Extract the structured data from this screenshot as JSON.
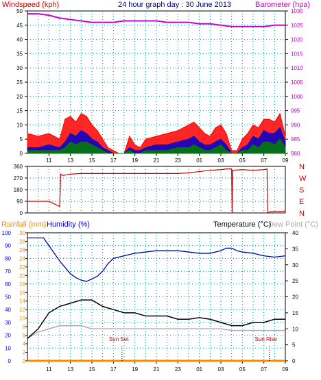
{
  "page": {
    "title": "24 hour graph day : 30 June 2013",
    "colors": {
      "windspeed": "#ff0000",
      "gust_blue": "#0000cc",
      "avg_green": "#008000",
      "barometer": "#cc00cc",
      "direction": "#cc0000",
      "rainfall": "#ff8c00",
      "humidity": "#0000ff",
      "humidity_line": "#0000aa",
      "temperature": "#000000",
      "dew_point": "#aaaaaa"
    }
  },
  "chart_data": [
    {
      "type": "area",
      "name_left_axis": "Windspeed (kph)",
      "name_right_axis": "Barometer (hpa)",
      "x_ticks": [
        "11",
        "13",
        "15",
        "17",
        "19",
        "21",
        "23",
        "01",
        "03",
        "05",
        "07",
        "09"
      ],
      "yleft_ticks": [
        "0",
        "5",
        "10",
        "15",
        "20",
        "25",
        "30",
        "35",
        "40",
        "45",
        "50"
      ],
      "yleft_lim": [
        0,
        50
      ],
      "yright_ticks": [
        "980",
        "985",
        "990",
        "995",
        "1000",
        "1005",
        "1010",
        "1015",
        "1020",
        "1025",
        "1030"
      ],
      "yright_lim": [
        980,
        1030
      ],
      "x_hours_from": 9,
      "grid": true,
      "series": [
        {
          "kind": "area",
          "style": "windspeed",
          "x": [
            9,
            10,
            11,
            12,
            12.5,
            13,
            13.5,
            14,
            14.5,
            15,
            15.5,
            16,
            16.5,
            17,
            17.5,
            18,
            18.5,
            19,
            19.5,
            20,
            21,
            22,
            23,
            24,
            24.5,
            25,
            25.5,
            26,
            26.5,
            27,
            27.5,
            28,
            28.5,
            29,
            29.5,
            30,
            30.5,
            31,
            31.5,
            32,
            32.5,
            33
          ],
          "values": [
            7,
            6,
            7,
            5,
            12,
            13,
            11,
            14,
            13,
            10,
            8,
            5,
            2,
            1,
            0,
            0,
            6,
            3,
            2,
            5,
            6,
            7,
            8,
            10,
            11,
            9,
            7,
            6,
            9,
            10,
            7,
            1,
            1,
            5,
            7,
            10,
            9,
            12,
            12,
            11,
            14,
            6
          ]
        },
        {
          "kind": "area",
          "style": "gust_blue",
          "x": [
            9,
            10,
            11,
            12,
            12.5,
            13,
            13.5,
            14,
            14.5,
            15,
            15.5,
            16,
            16.5,
            17,
            17.5,
            18,
            18.5,
            19,
            19.5,
            20,
            21,
            22,
            23,
            24,
            24.5,
            25,
            25.5,
            26,
            26.5,
            27,
            27.5,
            28,
            28.5,
            29,
            29.5,
            30,
            30.5,
            31,
            31.5,
            32,
            32.5,
            33
          ],
          "values": [
            2,
            2,
            3,
            2,
            4,
            7,
            6,
            8,
            7,
            5,
            4,
            2,
            1,
            0,
            0,
            0,
            2,
            1,
            1,
            2,
            3,
            3,
            4,
            5,
            6,
            4,
            3,
            3,
            4,
            5,
            3,
            0,
            0,
            2,
            3,
            6,
            5,
            8,
            7,
            7,
            9,
            4
          ]
        },
        {
          "kind": "area",
          "style": "avg_green",
          "x": [
            9,
            10,
            11,
            12,
            12.5,
            13,
            13.5,
            14,
            14.5,
            15,
            15.5,
            16,
            16.5,
            17,
            17.5,
            18,
            18.5,
            19,
            19.5,
            20,
            21,
            22,
            23,
            24,
            24.5,
            25,
            25.5,
            26,
            26.5,
            27,
            27.5,
            28,
            28.5,
            29,
            29.5,
            30,
            30.5,
            31,
            31.5,
            32,
            32.5,
            33
          ],
          "values": [
            1,
            1,
            1,
            1,
            2,
            4,
            3,
            4,
            4,
            3,
            2,
            1,
            0,
            0,
            0,
            0,
            1,
            0,
            0,
            1,
            1,
            1,
            2,
            2,
            3,
            2,
            1,
            1,
            2,
            3,
            1,
            0,
            0,
            1,
            1,
            3,
            2,
            4,
            4,
            3,
            5,
            2
          ]
        },
        {
          "kind": "line",
          "axis": "right",
          "style": "barometer",
          "x": [
            9,
            10,
            11,
            12,
            13,
            14,
            15,
            16,
            17,
            18,
            19,
            20,
            21,
            22,
            23,
            24,
            25,
            26,
            27,
            28,
            29,
            30,
            31,
            32,
            33
          ],
          "values": [
            1029,
            1029,
            1028.5,
            1027.5,
            1027,
            1026.5,
            1026,
            1026,
            1026,
            1026.5,
            1026.5,
            1026.5,
            1026.5,
            1026,
            1026,
            1026,
            1025.5,
            1025.5,
            1025,
            1024.5,
            1024.5,
            1024.5,
            1024.5,
            1025,
            1025
          ]
        }
      ]
    },
    {
      "type": "line",
      "x_ticks": [
        "0",
        "90",
        "180",
        "270",
        "360"
      ],
      "yleft_ticks": [
        "0",
        "90",
        "180",
        "270",
        "360"
      ],
      "yleft_lim": [
        0,
        360
      ],
      "right_labels": [
        "N",
        "W",
        "S",
        "E",
        "N"
      ],
      "grid": true,
      "series": [
        {
          "style": "direction",
          "x": [
            9,
            10,
            11,
            12,
            12.1,
            12.3,
            13,
            14,
            15,
            16,
            17,
            18,
            19,
            20,
            21,
            22,
            23,
            24,
            25,
            26,
            27,
            27.5,
            28,
            28.05,
            28.1,
            29,
            30,
            31,
            31.3,
            31.35,
            31.6,
            32,
            33
          ],
          "values": [
            90,
            90,
            90,
            50,
            300,
            290,
            300,
            305,
            305,
            305,
            305,
            305,
            305,
            305,
            305,
            305,
            305,
            310,
            320,
            330,
            335,
            340,
            340,
            0,
            330,
            335,
            330,
            335,
            340,
            0,
            10,
            10,
            15
          ]
        }
      ]
    },
    {
      "type": "line",
      "labels": {
        "rainfall": "Rainfall (mm)",
        "humidity": "Humidity (%)",
        "temperature": "Temperature (°C)",
        "dew_point": "Dew Point (°C)"
      },
      "y_humidity_ticks": [
        "0",
        "10",
        "20",
        "30",
        "40",
        "50",
        "60",
        "70",
        "80",
        "90",
        "100"
      ],
      "y_humidity_lim": [
        0,
        100
      ],
      "y_rain_ticks": [
        "0",
        "2",
        "4",
        "6",
        "8",
        "10",
        "12",
        "14",
        "16",
        "18",
        "20",
        "22",
        "24",
        "26",
        "28",
        "30"
      ],
      "y_rain_lim": [
        0,
        30
      ],
      "y_temp_ticks": [
        "0",
        "5",
        "10",
        "15",
        "20",
        "25",
        "30",
        "35",
        "40"
      ],
      "y_temp_lim": [
        0,
        40
      ],
      "x_ticks": [
        "11",
        "13",
        "15",
        "17",
        "19",
        "21",
        "23",
        "01",
        "03",
        "05",
        "07",
        "09"
      ],
      "annotations": [
        {
          "text": "Sun Set",
          "x": 17.5
        },
        {
          "text": "Sun Rise",
          "x": 31.2
        }
      ],
      "grid": true,
      "series": [
        {
          "name": "Humidity",
          "style": "humidity_line",
          "axis": "humidity",
          "x": [
            9,
            10,
            10.5,
            11,
            12,
            13,
            13.5,
            14,
            14.5,
            15,
            15.5,
            16,
            16.5,
            17,
            18,
            19,
            20,
            21,
            22,
            23,
            24,
            25,
            26,
            27,
            27.5,
            28,
            28.5,
            29,
            30,
            31,
            32,
            33
          ],
          "values": [
            96,
            96,
            96,
            90,
            78,
            68,
            65,
            63,
            62,
            64,
            66,
            70,
            76,
            80,
            82,
            84,
            85,
            86,
            86,
            86,
            85,
            84,
            84,
            86,
            88,
            88,
            86,
            85,
            84,
            82,
            81,
            82
          ]
        },
        {
          "name": "Temperature",
          "style": "temperature",
          "axis": "temp",
          "x": [
            9,
            10,
            11,
            12,
            13,
            14,
            15,
            16,
            17,
            18,
            19,
            20,
            21,
            22,
            23,
            24,
            25,
            26,
            27,
            28,
            29,
            30,
            31,
            32,
            33
          ],
          "values": [
            7,
            10,
            15,
            17,
            18,
            19,
            19,
            17,
            16,
            15,
            15,
            14,
            14,
            14,
            13,
            13,
            13.5,
            13,
            12,
            11,
            11,
            12,
            12,
            13,
            13
          ]
        },
        {
          "name": "Dew Point",
          "style": "dew_point",
          "axis": "temp",
          "x": [
            9,
            10,
            11,
            12,
            13,
            14,
            15,
            16,
            17,
            18,
            19,
            20,
            21,
            22,
            23,
            24,
            25,
            26,
            27,
            28,
            29,
            30,
            31,
            32,
            33
          ],
          "values": [
            7,
            9,
            10,
            11,
            11,
            11,
            10,
            10,
            10,
            10,
            10,
            10,
            10,
            10,
            10,
            10,
            10,
            10,
            10,
            9.5,
            9.5,
            9.5,
            9.5,
            9.5,
            9.5
          ]
        },
        {
          "name": "Rainfall",
          "style": "rainfall",
          "axis": "rain",
          "x": [
            9,
            33
          ],
          "values": [
            0,
            0
          ]
        }
      ]
    }
  ]
}
